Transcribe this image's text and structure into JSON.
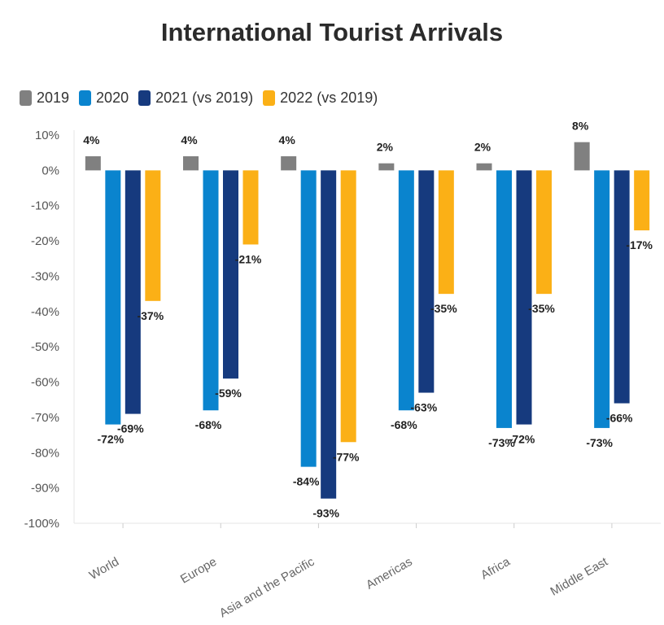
{
  "chart_data": {
    "type": "bar",
    "title": "International Tourist Arrivals",
    "categories": [
      "World",
      "Europe",
      "Asia and the Pacific",
      "Americas",
      "Africa",
      "Middle East"
    ],
    "series": [
      {
        "name": "2019",
        "color": "#808080",
        "values": [
          4,
          4,
          4,
          2,
          2,
          8
        ],
        "labels": [
          "4%",
          "4%",
          "4%",
          "2%",
          "2%",
          "8%"
        ]
      },
      {
        "name": "2020",
        "color": "#0a84ce",
        "values": [
          -72,
          -68,
          -84,
          -68,
          -73,
          -73
        ],
        "labels": [
          "-72%",
          "-68%",
          "-84%",
          "-68%",
          "-73%",
          "-73%"
        ]
      },
      {
        "name": "2021 (vs 2019)",
        "color": "#163a7e",
        "values": [
          -69,
          -59,
          -93,
          -63,
          -72,
          -66
        ],
        "labels": [
          "-69%",
          "-59%",
          "-93%",
          "-63%",
          "-72%",
          "-66%"
        ]
      },
      {
        "name": "2022 (vs 2019)",
        "color": "#fbb016",
        "values": [
          -37,
          -21,
          -77,
          -35,
          -35,
          -17
        ],
        "labels": [
          "-37%",
          "-21%",
          "-77%",
          "-35%",
          "-35%",
          "-17%"
        ]
      }
    ],
    "ylim": [
      -100,
      10
    ],
    "yticks": [
      "10%",
      "0%",
      "-10%",
      "-20%",
      "-30%",
      "-40%",
      "-50%",
      "-60%",
      "-70%",
      "-80%",
      "-90%",
      "-100%"
    ],
    "ytick_values": [
      10,
      0,
      -10,
      -20,
      -30,
      -40,
      -50,
      -60,
      -70,
      -80,
      -90,
      -100
    ],
    "legend_position": "top-left",
    "grid": false
  }
}
